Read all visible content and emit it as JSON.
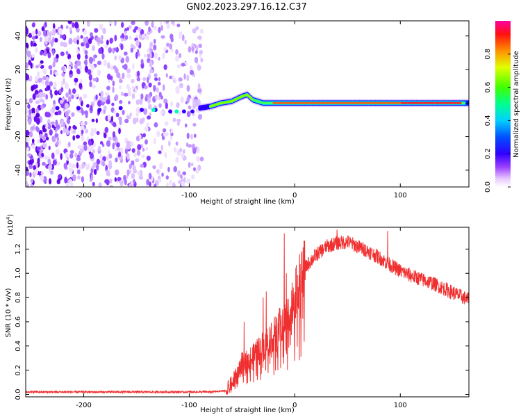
{
  "title": "GN02.2023.297.16.12.C37",
  "colors": {
    "snr_line": "#f03030",
    "axis": "#000000",
    "colormap": [
      "#ffffff",
      "#e8c8ff",
      "#8a2be2",
      "#5500ff",
      "#0000ff",
      "#00a0ff",
      "#00ffff",
      "#00ff80",
      "#40ff00",
      "#ffff00",
      "#ff8000",
      "#ff0000",
      "#ff00a0"
    ]
  },
  "chart_data": [
    {
      "type": "heatmap",
      "name": "spectrogram",
      "xlabel": "Height of straight line (km)",
      "ylabel": "Frequency (Hz)",
      "xlim": [
        -255,
        165
      ],
      "ylim": [
        -50,
        49
      ],
      "xticks": [
        -200,
        -100,
        0,
        100
      ],
      "xtick_labels": [
        "-200",
        "-100",
        "0",
        "100"
      ],
      "yticks": [
        -40,
        -20,
        0,
        20,
        40
      ],
      "ytick_labels": [
        "-40",
        "-20",
        "0",
        "20",
        "40"
      ],
      "colorbar": {
        "label": "Normalized spectral amplitude",
        "range": [
          0,
          1
        ],
        "ticks": [
          0.0,
          0.2,
          0.4,
          0.6,
          0.8
        ],
        "tick_labels": [
          "0.0",
          "0.2",
          "0.4",
          "0.6",
          "0.8"
        ]
      },
      "noise_region_x": [
        -255,
        -88
      ],
      "signal_track": {
        "x": [
          -90,
          -80,
          -70,
          -60,
          -50,
          -45,
          -40,
          -30,
          -20,
          -10,
          0,
          50,
          100,
          160
        ],
        "freq": [
          -3,
          -2,
          0,
          1,
          4,
          5,
          2,
          0,
          0,
          0,
          0,
          0,
          0,
          0
        ]
      }
    },
    {
      "type": "line",
      "name": "snr",
      "xlabel": "Height of straight line (km)",
      "ylabel": "SNR (10 * v/v)",
      "multiplier_label": "(x10",
      "multiplier_exp": "4",
      "xlim": [
        -255,
        165
      ],
      "ylim": [
        -0.02,
        1.38
      ],
      "xticks": [
        -200,
        -100,
        0,
        100
      ],
      "xtick_labels": [
        "-200",
        "-100",
        "0",
        "100"
      ],
      "yticks": [
        0.0,
        0.2,
        0.4,
        0.6,
        0.8,
        1.0,
        1.2
      ],
      "ytick_labels": [
        "0.0",
        "0.2",
        "0.4",
        "0.6",
        "0.8",
        "1.0",
        "1.2"
      ],
      "envelope": {
        "x": [
          -255,
          -150,
          -80,
          -65,
          -60,
          -55,
          -50,
          -40,
          -30,
          -20,
          -15,
          -10,
          -5,
          0,
          5,
          10,
          20,
          30,
          40,
          50,
          60,
          70,
          80,
          90,
          100,
          110,
          120,
          130,
          140,
          150,
          160,
          165
        ],
        "y": [
          0.02,
          0.02,
          0.02,
          0.03,
          0.08,
          0.15,
          0.25,
          0.3,
          0.4,
          0.5,
          0.55,
          0.6,
          0.7,
          0.82,
          0.95,
          1.05,
          1.15,
          1.22,
          1.25,
          1.26,
          1.22,
          1.18,
          1.13,
          1.07,
          1.02,
          0.98,
          0.95,
          0.92,
          0.88,
          0.84,
          0.8,
          0.78
        ]
      },
      "spikes": {
        "x": [
          -48,
          -30,
          -27,
          -10,
          -8,
          40,
          88
        ],
        "y": [
          0.6,
          0.8,
          0.85,
          1.33,
          1.0,
          1.36,
          1.35
        ]
      }
    }
  ]
}
